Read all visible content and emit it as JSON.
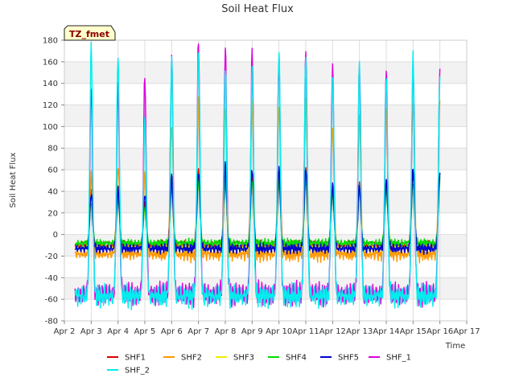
{
  "chart_data": {
    "type": "line",
    "title": "Soil Heat Flux",
    "xlabel": "Time",
    "ylabel": "Soil Heat Flux",
    "tag": "TZ_fmet",
    "x_tick_labels": [
      "Apr 2",
      "Apr 3",
      "Apr 4",
      "Apr 5",
      "Apr 6",
      "Apr 7",
      "Apr 8",
      "Apr 9",
      "Apr 10",
      "Apr 11",
      "Apr 12",
      "Apr 13",
      "Apr 14",
      "Apr 15",
      "Apr 16",
      "Apr 17"
    ],
    "xlim_days": [
      2,
      17
    ],
    "data_start_day": 2.4,
    "data_end_day": 16.0,
    "ylim": [
      -80,
      180
    ],
    "y_ticks": [
      -80,
      -60,
      -40,
      -20,
      0,
      20,
      40,
      60,
      80,
      100,
      120,
      140,
      160,
      180
    ],
    "grid": true,
    "legend_position": "bottom",
    "days": [
      3,
      4,
      5,
      6,
      7,
      8,
      9,
      10,
      11,
      12,
      13,
      14,
      15,
      16
    ],
    "series": [
      {
        "name": "SHF1",
        "color": "#dd0000",
        "night": -10,
        "peaks": [
          40,
          45,
          30,
          55,
          60,
          55,
          55,
          60,
          60,
          45,
          45,
          50,
          55,
          55
        ]
      },
      {
        "name": "SHF2",
        "color": "#ff9900",
        "night": -18,
        "peaks": [
          55,
          65,
          55,
          105,
          120,
          120,
          120,
          120,
          125,
          100,
          110,
          115,
          125,
          120
        ]
      },
      {
        "name": "SHF3",
        "color": "#eeee00",
        "night": -12,
        "peaks": [
          30,
          35,
          25,
          45,
          50,
          50,
          50,
          50,
          50,
          40,
          40,
          45,
          50,
          50
        ]
      },
      {
        "name": "SHF4",
        "color": "#00dd00",
        "night": -8,
        "peaks": [
          30,
          35,
          25,
          45,
          50,
          50,
          50,
          50,
          50,
          40,
          40,
          45,
          50,
          50
        ]
      },
      {
        "name": "SHF5",
        "color": "#0000cc",
        "night": -13,
        "peaks": [
          38,
          42,
          38,
          52,
          60,
          62,
          62,
          60,
          62,
          45,
          45,
          50,
          60,
          58
        ]
      },
      {
        "name": "SHF_1",
        "color": "#dd00dd",
        "night": -55,
        "peaks": [
          138,
          140,
          145,
          165,
          177,
          175,
          168,
          165,
          168,
          158,
          157,
          153,
          160,
          152
        ]
      },
      {
        "name": "SHF_2",
        "color": "#00eeee",
        "night": -57,
        "peaks": [
          175,
          165,
          110,
          162,
          170,
          152,
          155,
          168,
          165,
          147,
          155,
          150,
          163,
          153
        ]
      }
    ]
  }
}
